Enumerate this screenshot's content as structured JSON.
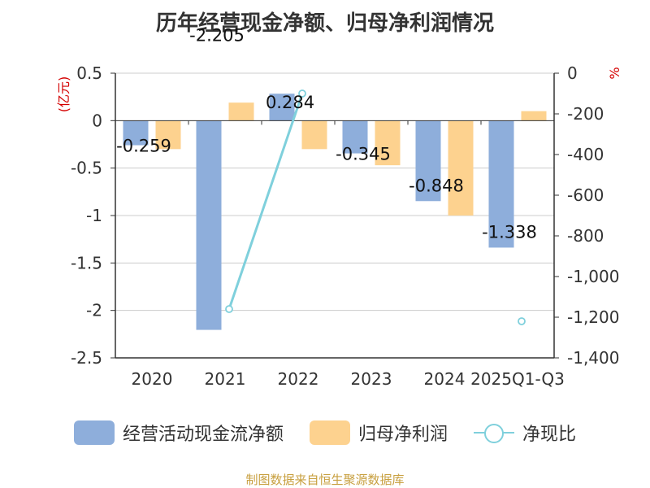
{
  "chart_data": {
    "type": "bar",
    "title": "历年经营现金净额、归母净利润情况",
    "categories": [
      "2020",
      "2021",
      "2022",
      "2023",
      "2024",
      "2025Q1-Q3"
    ],
    "series": [
      {
        "name": "经营活动现金流净额",
        "axis": "left",
        "kind": "bar",
        "color": "#8eaedb",
        "values": [
          -0.259,
          -2.205,
          0.284,
          -0.345,
          -0.848,
          -1.338
        ],
        "labels": [
          "-0.259",
          "-2.205",
          "0.284",
          "-0.345",
          "-0.848",
          "-1.338"
        ]
      },
      {
        "name": "归母净利润",
        "axis": "left",
        "kind": "bar",
        "color": "#fdd28f",
        "values": [
          -0.3,
          0.19,
          -0.3,
          -0.47,
          -1.0,
          0.1
        ]
      },
      {
        "name": "净现比",
        "axis": "right",
        "kind": "line",
        "color": "#7fd0dc",
        "values": [
          null,
          -1160,
          -100,
          null,
          null,
          -1220
        ]
      }
    ],
    "y_left": {
      "label": "(亿元)",
      "ticks": [
        "0.5",
        "0",
        "-0.5",
        "-1",
        "-1.5",
        "-2",
        "-2.5"
      ],
      "min": -2.5,
      "max": 0.5
    },
    "y_right": {
      "label": "%",
      "ticks": [
        "0",
        "-200",
        "-400",
        "-600",
        "-800",
        "-1,000",
        "-1,200",
        "-1,400"
      ],
      "min": -1400,
      "max": 0
    },
    "grid": true,
    "legend_position": "bottom"
  },
  "source": "制图数据来自恒生聚源数据库"
}
